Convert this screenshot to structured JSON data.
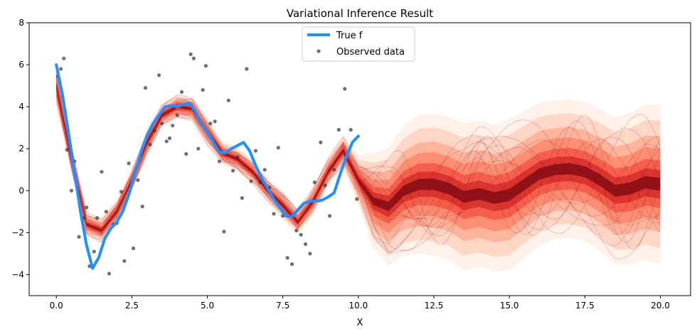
{
  "chart_data": {
    "type": "line",
    "title": "Variational Inference Result",
    "xlabel": "X",
    "ylabel": "",
    "xlim": [
      -0.9,
      21.0
    ],
    "ylim": [
      -5,
      8
    ],
    "xticks": [
      0.0,
      2.5,
      5.0,
      7.5,
      10.0,
      12.5,
      15.0,
      17.5,
      20.0
    ],
    "xtick_labels": [
      "0.0",
      "2.5",
      "5.0",
      "7.5",
      "10.0",
      "12.5",
      "15.0",
      "17.5",
      "20.0"
    ],
    "yticks": [
      -4,
      -2,
      0,
      2,
      4,
      6,
      8
    ],
    "ytick_labels": [
      "−4",
      "−2",
      "0",
      "2",
      "4",
      "6",
      "8"
    ],
    "grid": false,
    "legend": {
      "position": "top-center",
      "entries": [
        "True f",
        "Observed data"
      ]
    },
    "colors": {
      "true_f": "#1e90ff",
      "observed": "#333333",
      "posterior_dark": "#67000d",
      "posterior_mid": "#cb181d",
      "posterior_light": "#fcbba1"
    },
    "series": [
      {
        "name": "True f",
        "x": [
          0.0,
          0.2,
          0.4,
          0.6,
          0.8,
          1.0,
          1.2,
          1.4,
          1.6,
          1.8,
          2.0,
          2.2,
          2.4,
          2.6,
          2.8,
          3.0,
          3.2,
          3.4,
          3.6,
          3.8,
          4.0,
          4.2,
          4.4,
          4.6,
          4.8,
          5.0,
          5.2,
          5.4,
          5.6,
          5.8,
          6.0,
          6.2,
          6.4,
          6.6,
          6.8,
          7.0,
          7.2,
          7.4,
          7.6,
          7.8,
          8.0,
          8.2,
          8.4,
          8.6,
          8.8,
          9.0,
          9.2,
          9.4,
          9.6,
          9.8,
          10.0
        ],
        "y": [
          6.0,
          4.6,
          2.8,
          0.9,
          -1.0,
          -2.6,
          -3.7,
          -3.2,
          -2.3,
          -1.8,
          -1.5,
          -1.0,
          -0.2,
          0.8,
          1.8,
          2.6,
          3.2,
          3.6,
          4.0,
          4.05,
          4.0,
          4.1,
          4.15,
          3.8,
          3.2,
          2.8,
          2.3,
          1.85,
          1.8,
          2.0,
          2.15,
          2.3,
          1.9,
          1.2,
          0.6,
          0.1,
          -0.4,
          -0.8,
          -1.2,
          -1.25,
          -0.9,
          -0.6,
          -0.5,
          -0.5,
          -0.45,
          -0.3,
          -0.1,
          0.8,
          1.6,
          2.3,
          2.6
        ]
      },
      {
        "name": "Observed data",
        "x": [
          0.05,
          0.15,
          0.25,
          0.35,
          0.5,
          0.6,
          0.75,
          0.9,
          1.0,
          1.1,
          1.25,
          1.35,
          1.5,
          1.65,
          1.75,
          1.9,
          2.0,
          2.15,
          2.25,
          2.4,
          2.55,
          2.7,
          2.85,
          2.95,
          3.1,
          3.25,
          3.4,
          3.5,
          3.65,
          3.75,
          3.85,
          4.0,
          4.15,
          4.3,
          4.45,
          4.55,
          4.7,
          4.85,
          4.95,
          5.1,
          5.25,
          5.4,
          5.55,
          5.7,
          5.85,
          6.0,
          6.15,
          6.3,
          6.45,
          6.6,
          6.75,
          6.9,
          7.05,
          7.2,
          7.35,
          7.5,
          7.65,
          7.8,
          7.95,
          8.1,
          8.25,
          8.4,
          8.55,
          8.75,
          8.9,
          9.05,
          9.2,
          9.35,
          9.55,
          9.75,
          9.95
        ],
        "y": [
          5.45,
          5.8,
          6.3,
          1.95,
          0.0,
          1.4,
          -2.2,
          -1.3,
          -0.8,
          -3.6,
          -2.9,
          -1.3,
          0.9,
          -1.0,
          -3.95,
          -1.6,
          -1.55,
          -0.05,
          -3.35,
          1.3,
          -2.75,
          0.5,
          -0.75,
          4.9,
          2.2,
          2.85,
          5.5,
          3.2,
          2.35,
          2.5,
          3.1,
          3.6,
          4.7,
          1.75,
          6.5,
          6.3,
          2.0,
          4.8,
          5.95,
          3.2,
          3.3,
          1.4,
          -1.95,
          4.3,
          0.95,
          1.6,
          -0.35,
          5.8,
          0.45,
          1.9,
          0.4,
          1.0,
          0.15,
          -1.1,
          2.05,
          -1.2,
          -3.2,
          -3.5,
          -1.9,
          -2.1,
          -2.55,
          -3.0,
          0.4,
          2.3,
          0.25,
          -1.2,
          1.0,
          2.9,
          4.85,
          2.9,
          -0.4
        ]
      },
      {
        "name": "",
        "x": [
          0.0,
          0.5,
          1.0,
          1.5,
          2.0,
          2.5,
          3.0,
          3.5,
          4.0,
          4.5,
          5.0,
          5.5,
          6.0,
          6.5,
          7.0,
          7.5,
          8.0,
          8.5,
          9.0,
          9.5,
          10.0,
          10.5,
          11.0,
          11.5,
          12.0,
          12.5,
          13.0,
          13.5,
          14.0,
          14.5,
          15.0,
          15.5,
          16.0,
          16.5,
          17.0,
          17.5,
          18.0,
          18.5,
          19.0,
          19.5,
          20.0
        ],
        "y": [
          5.0,
          1.5,
          -1.6,
          -1.9,
          -1.0,
          0.5,
          2.3,
          3.6,
          4.0,
          3.9,
          2.8,
          1.8,
          1.5,
          0.9,
          0.0,
          -0.7,
          -1.5,
          -0.5,
          0.9,
          1.9,
          0.5,
          -0.5,
          -0.75,
          0.0,
          0.3,
          0.3,
          0.1,
          -0.3,
          -0.15,
          -0.35,
          -0.2,
          0.3,
          0.8,
          1.0,
          1.05,
          0.9,
          0.5,
          0.0,
          0.1,
          0.4,
          0.3
        ],
        "spread": [
          1.0,
          0.7,
          0.6,
          0.6,
          0.6,
          0.6,
          0.7,
          0.6,
          0.6,
          0.6,
          0.7,
          0.6,
          0.6,
          0.6,
          0.6,
          0.7,
          0.6,
          0.7,
          0.7,
          0.8,
          1.2,
          2.3,
          2.8,
          3.1,
          3.3,
          3.4,
          3.4,
          3.5,
          3.5,
          3.5,
          3.6,
          3.5,
          3.4,
          3.3,
          3.3,
          3.3,
          3.4,
          3.5,
          3.6,
          3.7,
          3.8
        ]
      }
    ]
  }
}
